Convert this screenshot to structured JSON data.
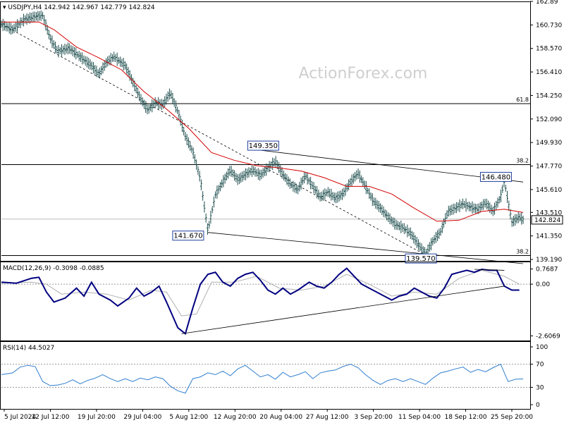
{
  "chart_data": {
    "type": "candlestick",
    "header": {
      "symbol": "USDJPY,H4",
      "open": "142.942",
      "high": "142.967",
      "low": "142.779",
      "close": "142.824"
    },
    "watermark": "ActionForex.com",
    "price_axis": {
      "ticks": [
        "162.89",
        "160.730",
        "158.570",
        "156.410",
        "154.250",
        "152.090",
        "149.930",
        "147.770",
        "145.610",
        "143.510",
        "141.350",
        "139.190"
      ],
      "last_price": "142.824",
      "ylim": [
        139.19,
        162.89
      ]
    },
    "time_axis": {
      "ticks": [
        "5 Jul 2024",
        "12 Jul 12:00",
        "19 Jul 20:00",
        "29 Jul 04:00",
        "5 Aug 12:00",
        "12 Aug 20:00",
        "20 Aug 04:00",
        "27 Aug 12:00",
        "3 Sep 20:00",
        "11 Sep 04:00",
        "18 Sep 12:00",
        "25 Sep 20:00"
      ]
    },
    "price_series": {
      "name": "",
      "points": [
        [
          0,
          160.8
        ],
        [
          3,
          160.3
        ],
        [
          6,
          161.2
        ],
        [
          9,
          161.5
        ],
        [
          11,
          161.6
        ],
        [
          13,
          159.5
        ],
        [
          15,
          158.3
        ],
        [
          18,
          158.6
        ],
        [
          21,
          157.8
        ],
        [
          24,
          157.0
        ],
        [
          26,
          156.2
        ],
        [
          28,
          157.3
        ],
        [
          30,
          157.8
        ],
        [
          33,
          157.0
        ],
        [
          35,
          155.5
        ],
        [
          37,
          154.0
        ],
        [
          39,
          152.9
        ],
        [
          41,
          153.6
        ],
        [
          43,
          153.4
        ],
        [
          45,
          154.5
        ],
        [
          47,
          152.8
        ],
        [
          49,
          150.5
        ],
        [
          51,
          149.1
        ],
        [
          53,
          146.6
        ],
        [
          55,
          141.8
        ],
        [
          57,
          145.1
        ],
        [
          59,
          146.3
        ],
        [
          61,
          147.4
        ],
        [
          63,
          146.5
        ],
        [
          65,
          147.0
        ],
        [
          67,
          147.4
        ],
        [
          69,
          146.9
        ],
        [
          71,
          147.6
        ],
        [
          73,
          148.2
        ],
        [
          75,
          147.0
        ],
        [
          77,
          146.1
        ],
        [
          79,
          145.6
        ],
        [
          81,
          146.9
        ],
        [
          83,
          145.9
        ],
        [
          85,
          144.9
        ],
        [
          87,
          145.4
        ],
        [
          89,
          144.8
        ],
        [
          91,
          145.2
        ],
        [
          93,
          146.3
        ],
        [
          95,
          147.1
        ],
        [
          97,
          145.9
        ],
        [
          99,
          144.6
        ],
        [
          101,
          143.9
        ],
        [
          103,
          143.1
        ],
        [
          105,
          142.4
        ],
        [
          107,
          142.1
        ],
        [
          109,
          141.6
        ],
        [
          111,
          140.6
        ],
        [
          113,
          139.7
        ],
        [
          115,
          140.9
        ],
        [
          117,
          141.7
        ],
        [
          119,
          143.6
        ],
        [
          121,
          143.9
        ],
        [
          123,
          144.3
        ],
        [
          125,
          144.0
        ],
        [
          127,
          143.8
        ],
        [
          129,
          144.4
        ],
        [
          131,
          143.6
        ],
        [
          133,
          144.9
        ],
        [
          134,
          146.4
        ],
        [
          136,
          142.6
        ],
        [
          138,
          143.1
        ],
        [
          139,
          142.824
        ]
      ],
      "xlim": [
        0,
        139
      ],
      "high_marker": {
        "index": 134,
        "value": 146.5
      }
    },
    "moving_average": {
      "points": [
        [
          0,
          161.0
        ],
        [
          10,
          161.0
        ],
        [
          14,
          160.3
        ],
        [
          20,
          158.7
        ],
        [
          26,
          157.7
        ],
        [
          32,
          156.6
        ],
        [
          38,
          154.6
        ],
        [
          44,
          153.0
        ],
        [
          50,
          151.2
        ],
        [
          56,
          149.0
        ],
        [
          62,
          148.3
        ],
        [
          68,
          147.8
        ],
        [
          74,
          147.6
        ],
        [
          80,
          147.3
        ],
        [
          86,
          146.7
        ],
        [
          92,
          145.9
        ],
        [
          98,
          145.9
        ],
        [
          104,
          145.2
        ],
        [
          110,
          143.9
        ],
        [
          116,
          142.7
        ],
        [
          122,
          142.8
        ],
        [
          128,
          143.6
        ],
        [
          134,
          143.8
        ],
        [
          139,
          143.5
        ]
      ]
    },
    "trend_lines": [
      {
        "from": [
          0,
          160.8
        ],
        "to": [
          113,
          139.6
        ]
      },
      {
        "from": [
          66,
          149.35
        ],
        "to": [
          139,
          146.3
        ]
      },
      {
        "from": [
          55,
          141.67
        ],
        "to": [
          139,
          138.8
        ]
      }
    ],
    "horizontal_levels": [
      {
        "value": 153.5,
        "label": "61.8"
      },
      {
        "value": 147.9,
        "label": "38.2"
      },
      {
        "value": 142.9,
        "label": ""
      },
      {
        "value": 139.55,
        "label": "38.2"
      }
    ],
    "annotations": [
      {
        "text": "149.350",
        "value": 149.35,
        "index": 66
      },
      {
        "text": "146.480",
        "value": 146.48,
        "index": 128
      },
      {
        "text": "141.670",
        "value": 141.67,
        "index": 46
      },
      {
        "text": "139.570",
        "value": 139.57,
        "index": 108
      }
    ],
    "macd": {
      "label": "MACD(12,26,9) -0.3098 -0.0885",
      "ticks": [
        "0.7687",
        "0.00",
        "-2.6069"
      ],
      "ylim": [
        -2.7,
        1.0
      ],
      "macd_points": [
        [
          0,
          0.1
        ],
        [
          4,
          0.05
        ],
        [
          8,
          0.3
        ],
        [
          10,
          0.35
        ],
        [
          12,
          -0.4
        ],
        [
          14,
          -0.9
        ],
        [
          17,
          -0.7
        ],
        [
          20,
          -0.2
        ],
        [
          22,
          -0.6
        ],
        [
          24,
          0.1
        ],
        [
          26,
          -0.5
        ],
        [
          29,
          -0.8
        ],
        [
          31,
          -1.1
        ],
        [
          34,
          -0.7
        ],
        [
          36,
          -0.2
        ],
        [
          38,
          -0.6
        ],
        [
          40,
          -0.4
        ],
        [
          42,
          -0.1
        ],
        [
          44,
          -0.9
        ],
        [
          47,
          -2.2
        ],
        [
          49,
          -2.5
        ],
        [
          51,
          -1.2
        ],
        [
          53,
          0.0
        ],
        [
          55,
          0.5
        ],
        [
          57,
          0.6
        ],
        [
          59,
          0.1
        ],
        [
          61,
          -0.1
        ],
        [
          63,
          0.3
        ],
        [
          65,
          0.5
        ],
        [
          67,
          0.6
        ],
        [
          69,
          0.2
        ],
        [
          71,
          -0.3
        ],
        [
          73,
          -0.5
        ],
        [
          75,
          -0.2
        ],
        [
          77,
          -0.5
        ],
        [
          79,
          -0.3
        ],
        [
          82,
          0.1
        ],
        [
          84,
          -0.1
        ],
        [
          86,
          -0.2
        ],
        [
          88,
          0.1
        ],
        [
          90,
          0.5
        ],
        [
          92,
          0.8
        ],
        [
          94,
          0.4
        ],
        [
          96,
          0.0
        ],
        [
          98,
          -0.2
        ],
        [
          100,
          -0.4
        ],
        [
          102,
          -0.6
        ],
        [
          104,
          -0.8
        ],
        [
          106,
          -0.6
        ],
        [
          108,
          -0.5
        ],
        [
          110,
          -0.2
        ],
        [
          112,
          -0.4
        ],
        [
          114,
          -0.6
        ],
        [
          116,
          -0.7
        ],
        [
          118,
          -0.2
        ],
        [
          120,
          0.5
        ],
        [
          122,
          0.6
        ],
        [
          124,
          0.7
        ],
        [
          126,
          0.6
        ],
        [
          128,
          0.75
        ],
        [
          130,
          0.7
        ],
        [
          132,
          0.7
        ],
        [
          134,
          -0.1
        ],
        [
          136,
          -0.3
        ],
        [
          138,
          -0.3
        ]
      ],
      "signal_points": [
        [
          0,
          0.05
        ],
        [
          8,
          0.1
        ],
        [
          12,
          0.0
        ],
        [
          16,
          -0.5
        ],
        [
          22,
          -0.4
        ],
        [
          28,
          -0.5
        ],
        [
          34,
          -0.8
        ],
        [
          40,
          -0.3
        ],
        [
          44,
          -0.4
        ],
        [
          48,
          -1.6
        ],
        [
          52,
          -1.5
        ],
        [
          56,
          0.1
        ],
        [
          62,
          0.1
        ],
        [
          68,
          0.4
        ],
        [
          74,
          -0.2
        ],
        [
          80,
          -0.3
        ],
        [
          86,
          -0.1
        ],
        [
          92,
          0.5
        ],
        [
          98,
          0.0
        ],
        [
          104,
          -0.6
        ],
        [
          110,
          -0.4
        ],
        [
          116,
          -0.5
        ],
        [
          122,
          0.3
        ],
        [
          128,
          0.7
        ],
        [
          134,
          0.4
        ],
        [
          138,
          0.0
        ]
      ],
      "trend_lines": [
        {
          "from": [
            48,
            -2.5
          ],
          "to": [
            134,
            -0.1
          ]
        },
        {
          "from": [
            126,
            0.75
          ],
          "to": [
            134,
            0.7
          ]
        }
      ]
    },
    "rsi": {
      "label": "RSI(14) 44.5027",
      "ticks": [
        "100",
        "70",
        "30",
        "0"
      ],
      "ylim": [
        0,
        100
      ],
      "levels": [
        70,
        30
      ],
      "points": [
        [
          0,
          52
        ],
        [
          3,
          55
        ],
        [
          5,
          65
        ],
        [
          7,
          68
        ],
        [
          9,
          66
        ],
        [
          11,
          40
        ],
        [
          13,
          33
        ],
        [
          15,
          34
        ],
        [
          17,
          37
        ],
        [
          19,
          43
        ],
        [
          21,
          36
        ],
        [
          23,
          42
        ],
        [
          25,
          46
        ],
        [
          27,
          52
        ],
        [
          29,
          45
        ],
        [
          31,
          40
        ],
        [
          33,
          45
        ],
        [
          35,
          40
        ],
        [
          37,
          46
        ],
        [
          39,
          43
        ],
        [
          41,
          48
        ],
        [
          43,
          45
        ],
        [
          45,
          32
        ],
        [
          47,
          24
        ],
        [
          49,
          20
        ],
        [
          51,
          45
        ],
        [
          53,
          48
        ],
        [
          55,
          55
        ],
        [
          57,
          52
        ],
        [
          59,
          58
        ],
        [
          61,
          50
        ],
        [
          63,
          62
        ],
        [
          65,
          68
        ],
        [
          67,
          58
        ],
        [
          69,
          48
        ],
        [
          71,
          52
        ],
        [
          73,
          44
        ],
        [
          75,
          56
        ],
        [
          77,
          48
        ],
        [
          79,
          52
        ],
        [
          81,
          57
        ],
        [
          83,
          45
        ],
        [
          85,
          55
        ],
        [
          87,
          58
        ],
        [
          89,
          60
        ],
        [
          91,
          66
        ],
        [
          93,
          70
        ],
        [
          95,
          64
        ],
        [
          97,
          52
        ],
        [
          99,
          42
        ],
        [
          101,
          35
        ],
        [
          103,
          42
        ],
        [
          105,
          45
        ],
        [
          107,
          40
        ],
        [
          109,
          45
        ],
        [
          111,
          40
        ],
        [
          113,
          35
        ],
        [
          115,
          46
        ],
        [
          117,
          55
        ],
        [
          119,
          58
        ],
        [
          121,
          62
        ],
        [
          123,
          65
        ],
        [
          125,
          56
        ],
        [
          127,
          61
        ],
        [
          129,
          57
        ],
        [
          131,
          64
        ],
        [
          133,
          70
        ],
        [
          135,
          40
        ],
        [
          137,
          44
        ],
        [
          139,
          44.5
        ]
      ]
    },
    "colors": {
      "price": "#1d4d4d",
      "moving_average": "#d40000",
      "macd": "#000080",
      "signal": "#b0b0b0",
      "rsi": "#2f7fd0",
      "trend": "#000000",
      "background": "#ffffff"
    }
  }
}
